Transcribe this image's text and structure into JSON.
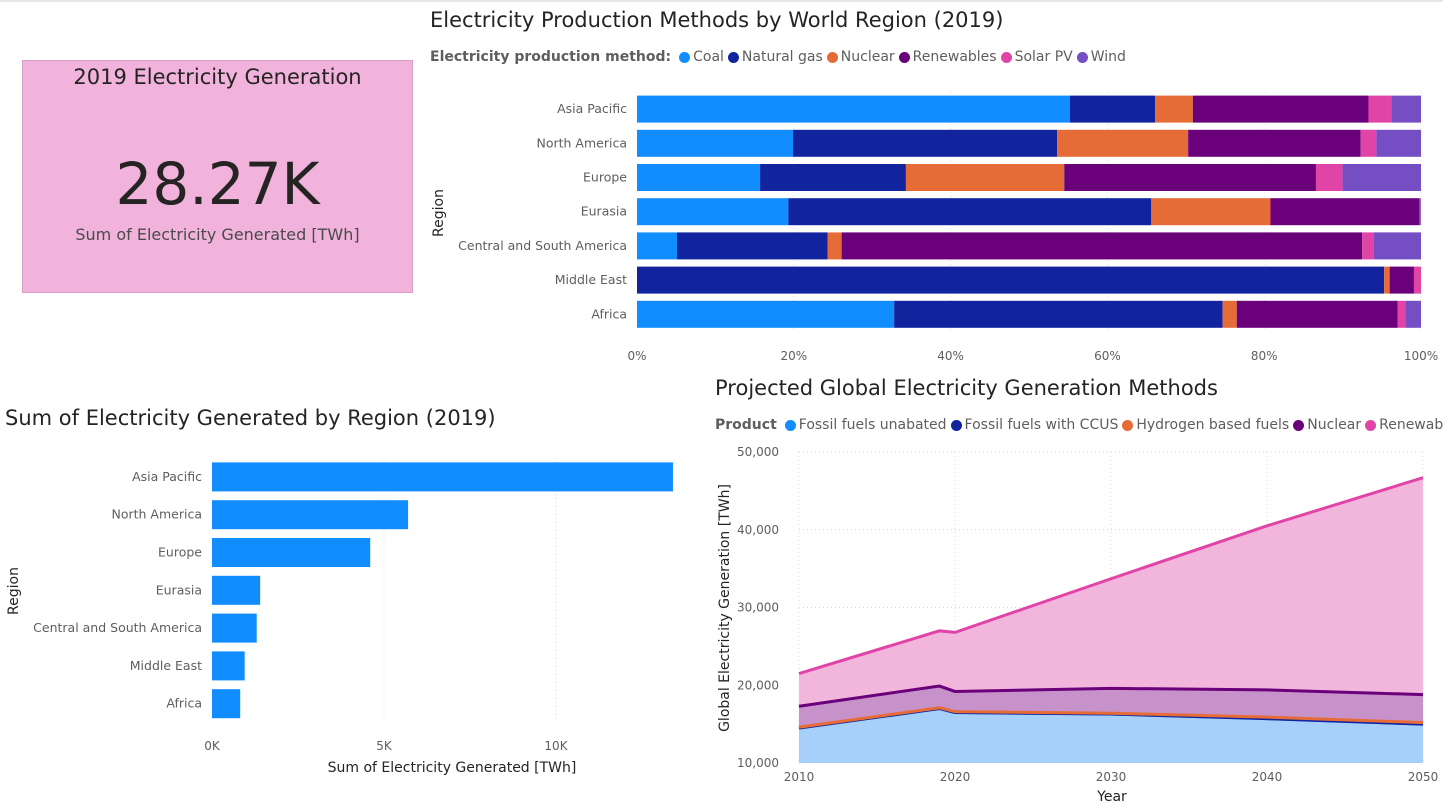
{
  "kpi": {
    "title": "2019 Electricity Generation",
    "value": "28.27K",
    "label": "Sum of Electricity Generated [TWh]"
  },
  "stacked": {
    "title": "Electricity Production Methods by World Region (2019)",
    "legend_title": "Electricity production method:"
  },
  "regionbar": {
    "title": "Sum of Electricity Generated by Region (2019)"
  },
  "projection": {
    "title": "Projected Global Electricity Generation Methods",
    "legend_title": "Product"
  },
  "chart_data": [
    {
      "type": "bar",
      "orientation": "horizontal",
      "stacking": "percent",
      "title": "Electricity Production Methods by World Region (2019)",
      "ylabel": "Region",
      "categories": [
        "Asia Pacific",
        "North America",
        "Europe",
        "Eurasia",
        "Central and South America",
        "Middle East",
        "Africa"
      ],
      "series": [
        {
          "name": "Coal",
          "color": "#118DFF",
          "values": [
            55.2,
            19.9,
            15.7,
            19.3,
            5.1,
            0.0,
            32.8
          ]
        },
        {
          "name": "Natural gas",
          "color": "#12239E",
          "values": [
            10.9,
            33.7,
            18.6,
            46.3,
            19.2,
            95.3,
            41.9
          ]
        },
        {
          "name": "Nuclear",
          "color": "#E66C37",
          "values": [
            4.8,
            16.7,
            20.2,
            15.2,
            1.8,
            0.7,
            1.8
          ]
        },
        {
          "name": "Renewables",
          "color": "#6B007B",
          "values": [
            22.4,
            22.0,
            32.1,
            19.0,
            66.4,
            3.1,
            20.5
          ]
        },
        {
          "name": "Solar PV",
          "color": "#E044A7",
          "values": [
            2.9,
            2.0,
            3.4,
            0.1,
            1.5,
            0.9,
            1.0
          ]
        },
        {
          "name": "Wind",
          "color": "#744EC2",
          "values": [
            3.8,
            5.7,
            10.0,
            0.1,
            6.0,
            0.0,
            2.0
          ]
        }
      ],
      "xticks": [
        "0%",
        "20%",
        "40%",
        "60%",
        "80%",
        "100%"
      ],
      "xlim": [
        0,
        100
      ],
      "legend_position": "top-left"
    },
    {
      "type": "bar",
      "orientation": "horizontal",
      "title": "Sum of Electricity Generated by Region (2019)",
      "xlabel": "Sum of Electricity Generated [TWh]",
      "ylabel": "Region",
      "categories": [
        "Asia Pacific",
        "North America",
        "Europe",
        "Eurasia",
        "Central and South America",
        "Middle East",
        "Africa"
      ],
      "values": [
        13400,
        5700,
        4600,
        1400,
        1300,
        950,
        820
      ],
      "color": "#118DFF",
      "xticks": [
        0,
        5000,
        10000
      ],
      "xtick_labels": [
        "0K",
        "5K",
        "10K"
      ],
      "xlim": [
        0,
        13500
      ],
      "grid": true
    },
    {
      "type": "area",
      "title": "Projected Global Electricity Generation Methods",
      "xlabel": "Year",
      "ylabel": "Global Electricity Generation [TWh]",
      "x": [
        2010,
        2019,
        2020,
        2030,
        2040,
        2050
      ],
      "series": [
        {
          "name": "Fossil fuels unabated",
          "color": "#118DFF",
          "values": [
            14500,
            17000,
            16500,
            16300,
            15700,
            15000
          ]
        },
        {
          "name": "Fossil fuels with CCUS",
          "color": "#12239E",
          "values": [
            14500,
            17000,
            16500,
            16300,
            15700,
            15000
          ]
        },
        {
          "name": "Hydrogen based fuels",
          "color": "#E66C37",
          "values": [
            14600,
            17100,
            16600,
            16400,
            15900,
            15200
          ]
        },
        {
          "name": "Nuclear",
          "color": "#6B007B",
          "values": [
            17300,
            19900,
            19200,
            19600,
            19400,
            18800
          ]
        },
        {
          "name": "Renewables",
          "color": "#E044A7",
          "values": [
            21500,
            27000,
            26800,
            33700,
            40500,
            46700
          ]
        }
      ],
      "stacked_display": "cumulative",
      "xticks": [
        2010,
        2020,
        2030,
        2040,
        2050
      ],
      "yticks": [
        10000,
        20000,
        30000,
        40000,
        50000
      ],
      "ytick_labels": [
        "10,000",
        "20,000",
        "30,000",
        "40,000",
        "50,000"
      ],
      "ylim": [
        10000,
        50000
      ],
      "xlim": [
        2010,
        2050
      ],
      "grid": true,
      "legend_position": "top"
    }
  ]
}
